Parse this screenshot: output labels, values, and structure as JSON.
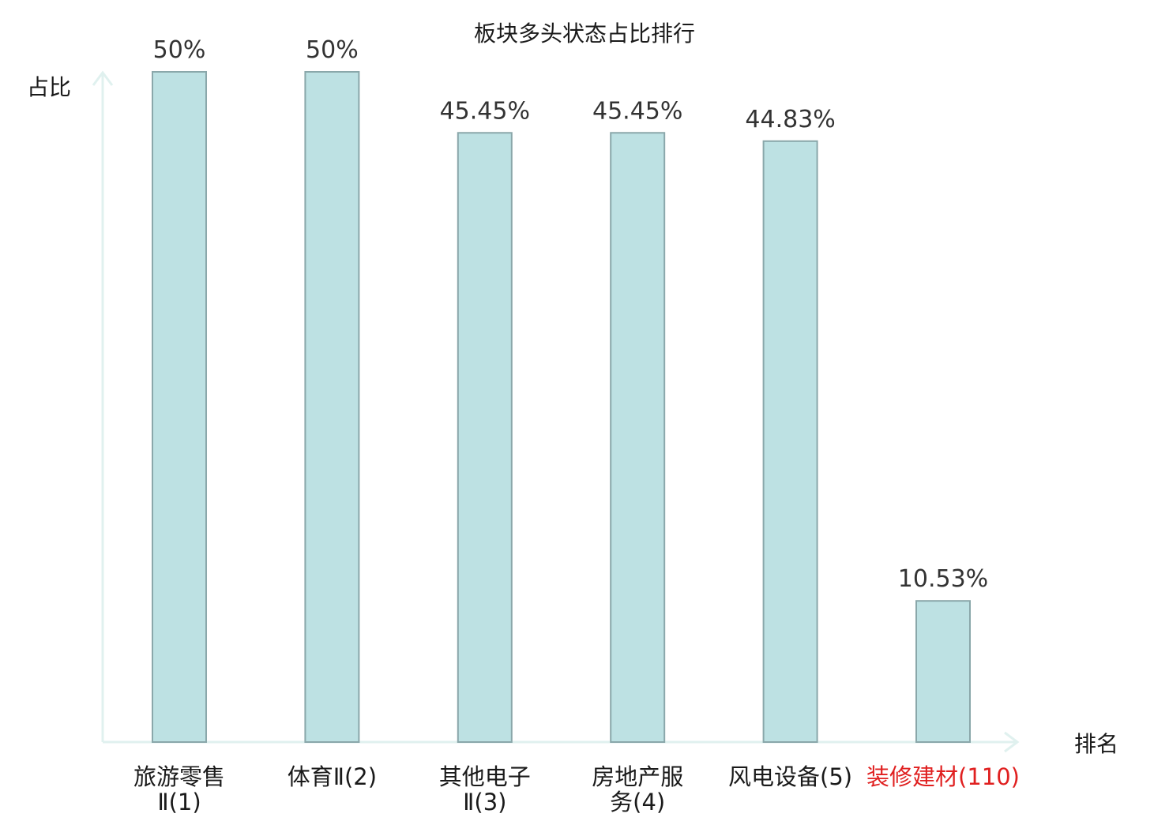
{
  "chart_data": {
    "type": "bar",
    "title": "板块多头状态占比排行",
    "ylabel": "占比",
    "xlabel": "排名",
    "categories": [
      {
        "lines": [
          "旅游零售",
          "Ⅱ(1)"
        ],
        "highlight": false
      },
      {
        "lines": [
          "体育Ⅱ(2)"
        ],
        "highlight": false
      },
      {
        "lines": [
          "其他电子",
          "Ⅱ(3)"
        ],
        "highlight": false
      },
      {
        "lines": [
          "房地产服",
          "务(4)"
        ],
        "highlight": false
      },
      {
        "lines": [
          "风电设备(5)"
        ],
        "highlight": false
      },
      {
        "lines": [
          "装修建材(110)"
        ],
        "highlight": true
      }
    ],
    "values": [
      50,
      50,
      45.45,
      45.45,
      44.83,
      10.53
    ],
    "value_labels": [
      "50%",
      "50%",
      "45.45%",
      "45.45%",
      "44.83%",
      "10.53%"
    ],
    "ylim": [
      0,
      50
    ],
    "grid": false,
    "colors": {
      "bar_fill": "#bde1e3",
      "bar_stroke": "#8aa7aa",
      "axis": "#e0f1ef",
      "highlight_text": "#e02020"
    }
  }
}
